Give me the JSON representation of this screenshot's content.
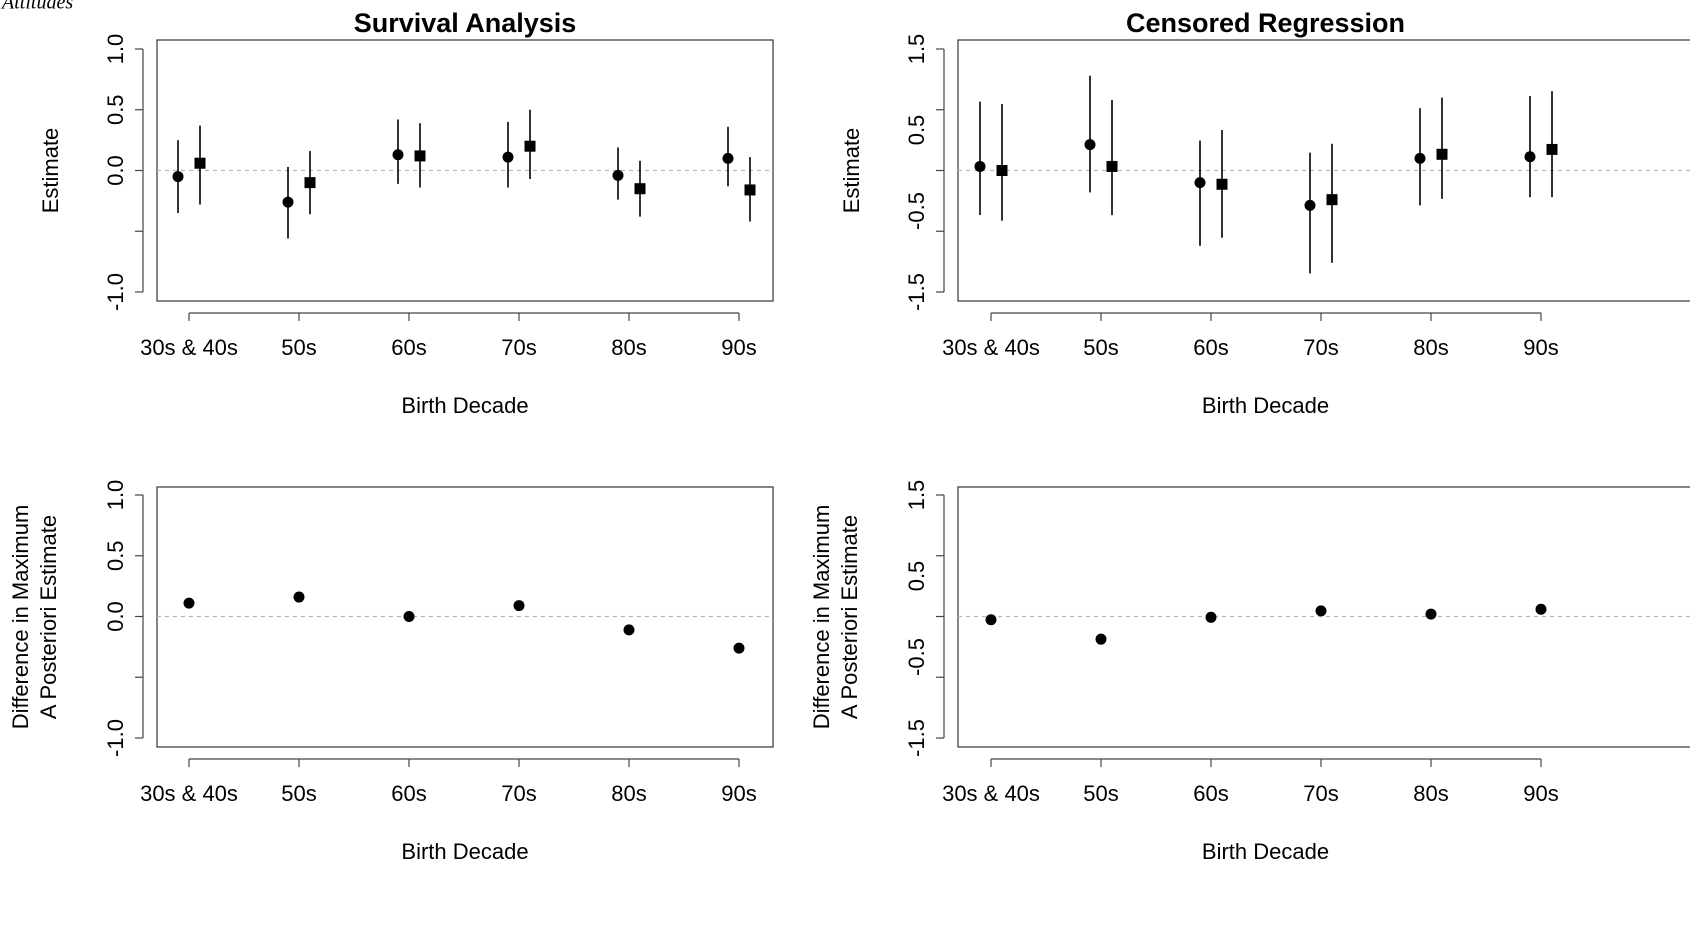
{
  "corner_label": "Attitudes",
  "chart_data": [
    {
      "type": "scatter",
      "title": "Survival Analysis",
      "xlabel": "Birth Decade",
      "ylabel": "Estimate",
      "categories": [
        "30s & 40s",
        "50s",
        "60s",
        "70s",
        "80s",
        "90s"
      ],
      "yticks": [
        "-1.0",
        "0.0",
        "0.5",
        "1.0"
      ],
      "ylim": [
        -1.0,
        1.0
      ],
      "reference_line": 0,
      "series": [
        {
          "marker": "circle",
          "values": [
            -0.05,
            -0.26,
            0.13,
            0.11,
            -0.04,
            0.1
          ],
          "lower": [
            -0.35,
            -0.56,
            -0.11,
            -0.14,
            -0.24,
            -0.13
          ],
          "upper": [
            0.25,
            0.03,
            0.42,
            0.4,
            0.19,
            0.36
          ]
        },
        {
          "marker": "square",
          "values": [
            0.06,
            -0.1,
            0.12,
            0.2,
            -0.15,
            -0.16
          ],
          "lower": [
            -0.28,
            -0.36,
            -0.14,
            -0.07,
            -0.38,
            -0.42
          ],
          "upper": [
            0.37,
            0.16,
            0.39,
            0.5,
            0.08,
            0.11
          ]
        }
      ]
    },
    {
      "type": "scatter",
      "title": "Censored Regression",
      "xlabel": "Birth Decade",
      "ylabel": "Estimate",
      "categories": [
        "30s & 40s",
        "50s",
        "60s",
        "70s",
        "80s",
        "90s"
      ],
      "yticks": [
        "-1.5",
        "-0.5",
        "0.5",
        "1.5"
      ],
      "ylim": [
        -1.5,
        1.5
      ],
      "reference_line": 0,
      "series": [
        {
          "marker": "circle",
          "values": [
            0.05,
            0.32,
            -0.15,
            -0.43,
            0.15,
            0.17
          ],
          "lower": [
            -0.55,
            -0.27,
            -0.93,
            -1.27,
            -0.43,
            -0.33
          ],
          "upper": [
            0.85,
            1.17,
            0.37,
            0.22,
            0.77,
            0.92
          ]
        },
        {
          "marker": "square",
          "values": [
            0.0,
            0.05,
            -0.17,
            -0.36,
            0.2,
            0.26
          ],
          "lower": [
            -0.62,
            -0.55,
            -0.83,
            -1.14,
            -0.35,
            -0.33
          ],
          "upper": [
            0.82,
            0.87,
            0.5,
            0.33,
            0.9,
            0.98
          ]
        }
      ]
    },
    {
      "type": "scatter",
      "title": "",
      "xlabel": "Birth Decade",
      "ylabel": "Difference in Maximum A Posteriori Estimate",
      "categories": [
        "30s & 40s",
        "50s",
        "60s",
        "70s",
        "80s",
        "90s"
      ],
      "yticks": [
        "-1.0",
        "0.0",
        "0.5",
        "1.0"
      ],
      "ylim": [
        -1.0,
        1.0
      ],
      "reference_line": 0,
      "series": [
        {
          "marker": "circle",
          "values": [
            0.11,
            0.16,
            0.0,
            0.09,
            -0.11,
            -0.26
          ]
        }
      ]
    },
    {
      "type": "scatter",
      "title": "",
      "xlabel": "Birth Decade",
      "ylabel": "Difference in Maximum A Posteriori Estimate",
      "categories": [
        "30s & 40s",
        "50s",
        "60s",
        "70s",
        "80s",
        "90s"
      ],
      "yticks": [
        "-1.5",
        "-0.5",
        "0.5",
        "1.5"
      ],
      "ylim": [
        -1.5,
        1.5
      ],
      "reference_line": 0,
      "series": [
        {
          "marker": "circle",
          "values": [
            -0.04,
            -0.28,
            -0.01,
            0.07,
            0.03,
            0.09
          ]
        }
      ]
    }
  ]
}
